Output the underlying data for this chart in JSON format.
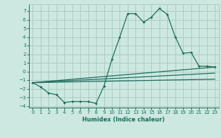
{
  "xlabel": "Humidex (Indice chaleur)",
  "bg_color": "#cce8e0",
  "grid_color": "#aaccC4",
  "line_color": "#1a6b5a",
  "xlim": [
    -0.5,
    23.5
  ],
  "ylim": [
    -4.2,
    7.8
  ],
  "xticks": [
    0,
    1,
    2,
    3,
    4,
    5,
    6,
    7,
    8,
    9,
    10,
    11,
    12,
    13,
    14,
    15,
    16,
    17,
    18,
    19,
    20,
    21,
    22,
    23
  ],
  "yticks": [
    -4,
    -3,
    -2,
    -1,
    0,
    1,
    2,
    3,
    4,
    5,
    6,
    7
  ],
  "line1_x": [
    0,
    1,
    2,
    3,
    4,
    5,
    6,
    7,
    8,
    9,
    10,
    11,
    12,
    13,
    14,
    15,
    16,
    17,
    18,
    19,
    20,
    21,
    22,
    23
  ],
  "line1_y": [
    -1.3,
    -1.8,
    -2.5,
    -2.7,
    -3.6,
    -3.5,
    -3.5,
    -3.5,
    -3.7,
    -1.7,
    1.4,
    4.0,
    6.7,
    6.7,
    5.7,
    6.3,
    7.3,
    6.6,
    4.0,
    2.1,
    2.2,
    0.6,
    0.6,
    0.5
  ],
  "line2_x": [
    0,
    23
  ],
  "line2_y": [
    -1.3,
    0.5
  ],
  "line3_x": [
    0,
    23
  ],
  "line3_y": [
    -1.3,
    -0.2
  ],
  "line4_x": [
    0,
    23
  ],
  "line4_y": [
    -1.3,
    -0.9
  ]
}
